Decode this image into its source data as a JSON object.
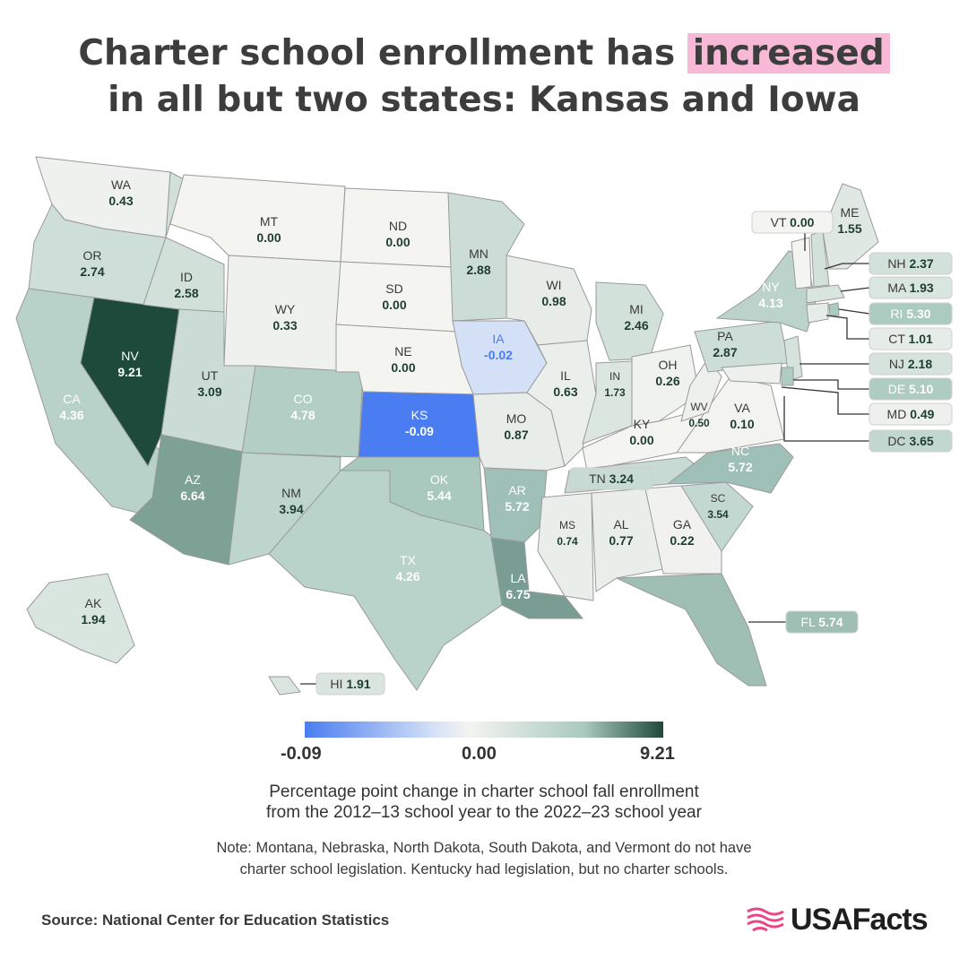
{
  "title": {
    "line1_prefix": "Charter school enrollment has",
    "line1_highlight": "increased",
    "line2": "in all but two states: Kansas and Iowa"
  },
  "map": {
    "scale": {
      "min": -0.09,
      "mid": 0.0,
      "max": 9.21
    },
    "states": [
      {
        "abbr": "WA",
        "value": "0.43"
      },
      {
        "abbr": "OR",
        "value": "2.74"
      },
      {
        "abbr": "CA",
        "value": "4.36"
      },
      {
        "abbr": "NV",
        "value": "9.21"
      },
      {
        "abbr": "ID",
        "value": "2.58"
      },
      {
        "abbr": "MT",
        "value": "0.00"
      },
      {
        "abbr": "WY",
        "value": "0.33"
      },
      {
        "abbr": "UT",
        "value": "3.09"
      },
      {
        "abbr": "AZ",
        "value": "6.64"
      },
      {
        "abbr": "CO",
        "value": "4.78"
      },
      {
        "abbr": "NM",
        "value": "3.94"
      },
      {
        "abbr": "ND",
        "value": "0.00"
      },
      {
        "abbr": "SD",
        "value": "0.00"
      },
      {
        "abbr": "NE",
        "value": "0.00"
      },
      {
        "abbr": "KS",
        "value": "-0.09"
      },
      {
        "abbr": "OK",
        "value": "5.44"
      },
      {
        "abbr": "TX",
        "value": "4.26"
      },
      {
        "abbr": "MN",
        "value": "2.88"
      },
      {
        "abbr": "IA",
        "value": "-0.02"
      },
      {
        "abbr": "MO",
        "value": "0.87"
      },
      {
        "abbr": "AR",
        "value": "5.72"
      },
      {
        "abbr": "LA",
        "value": "6.75"
      },
      {
        "abbr": "WI",
        "value": "0.98"
      },
      {
        "abbr": "IL",
        "value": "0.63"
      },
      {
        "abbr": "MI",
        "value": "2.46"
      },
      {
        "abbr": "IN",
        "value": "1.73"
      },
      {
        "abbr": "OH",
        "value": "0.26"
      },
      {
        "abbr": "KY",
        "value": "0.00"
      },
      {
        "abbr": "TN",
        "value": "3.24"
      },
      {
        "abbr": "MS",
        "value": "0.74"
      },
      {
        "abbr": "AL",
        "value": "0.77"
      },
      {
        "abbr": "GA",
        "value": "0.22"
      },
      {
        "abbr": "FL",
        "value": "5.74"
      },
      {
        "abbr": "SC",
        "value": "3.54"
      },
      {
        "abbr": "NC",
        "value": "5.72"
      },
      {
        "abbr": "VA",
        "value": "0.10"
      },
      {
        "abbr": "WV",
        "value": "0.50"
      },
      {
        "abbr": "PA",
        "value": "2.87"
      },
      {
        "abbr": "NY",
        "value": "4.13"
      },
      {
        "abbr": "VT",
        "value": "0.00"
      },
      {
        "abbr": "ME",
        "value": "1.55"
      },
      {
        "abbr": "NH",
        "value": "2.37"
      },
      {
        "abbr": "MA",
        "value": "1.93"
      },
      {
        "abbr": "RI",
        "value": "5.30"
      },
      {
        "abbr": "CT",
        "value": "1.01"
      },
      {
        "abbr": "NJ",
        "value": "2.18"
      },
      {
        "abbr": "DE",
        "value": "5.10"
      },
      {
        "abbr": "MD",
        "value": "0.49"
      },
      {
        "abbr": "DC",
        "value": "3.65"
      },
      {
        "abbr": "AK",
        "value": "1.94"
      },
      {
        "abbr": "HI",
        "value": "1.91"
      }
    ]
  },
  "legend": {
    "min_label": "-0.09",
    "mid_label": "0.00",
    "max_label": "9.21"
  },
  "subtitle": {
    "line1": "Percentage point change in charter school fall enrollment",
    "line2": "from the 2012–13 school year to the 2022–23 school year"
  },
  "note": {
    "line1": "Note: Montana, Nebraska, North Dakota, South Dakota, and Vermont do not have",
    "line2": "charter school legislation. Kentucky had legislation, but no charter schools."
  },
  "source": "Source: National Center for Education Statistics",
  "brand": {
    "name": "USAFacts",
    "color": "#e8458b"
  },
  "colors": {
    "negative": "#4a7df1",
    "zero": "#f4f4f1",
    "max": "#1e4a3b",
    "highlight": "#f7b9d6"
  }
}
